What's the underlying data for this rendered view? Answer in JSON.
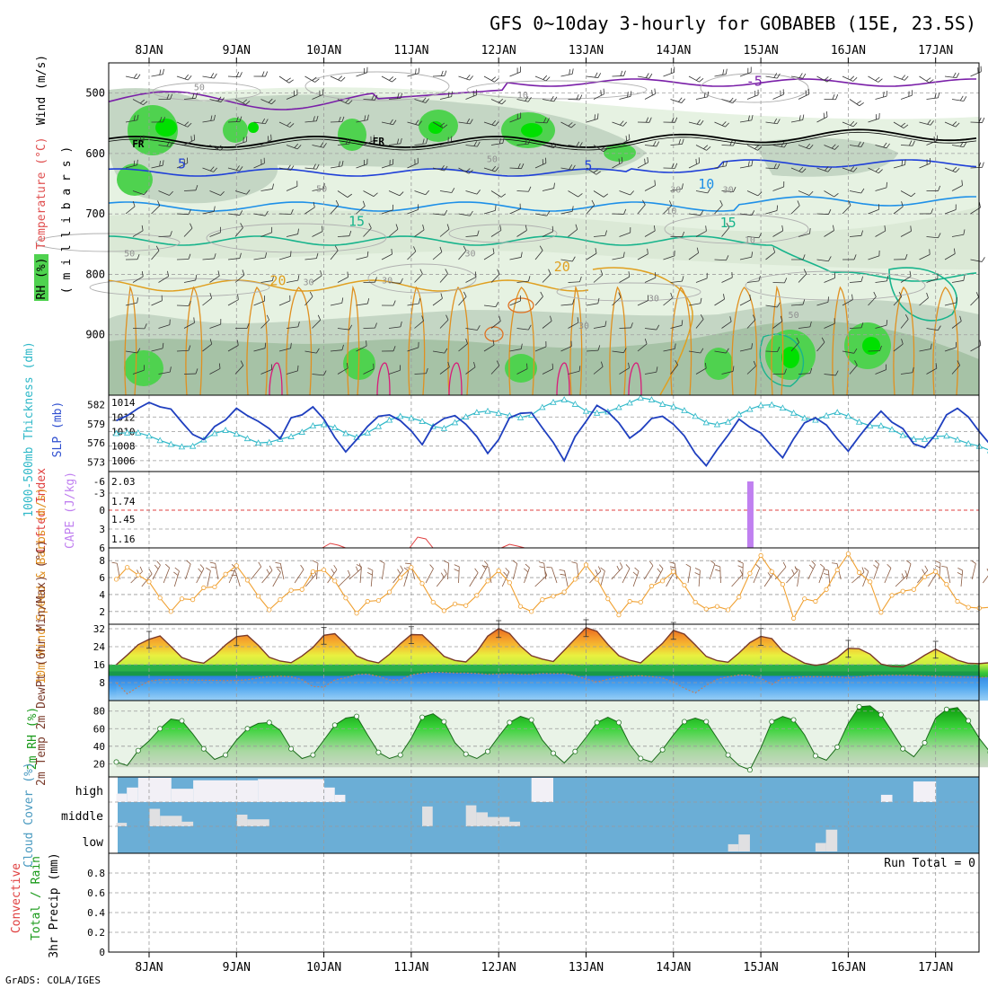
{
  "title": "GFS 0~10day 3-hourly for GOBABEB (15E, 23.5S)",
  "footer": "GrADS: COLA/IGES",
  "days": [
    "8JAN",
    "9JAN",
    "10JAN",
    "11JAN",
    "12JAN",
    "13JAN",
    "14JAN",
    "15JAN",
    "16JAN",
    "17JAN"
  ],
  "colors": {
    "rh_light": "#e6f2e2",
    "rh_mid": "#c4d6c4",
    "rh_dark": "#a6c2a6",
    "rh_green": "#4fd24f",
    "rh_bright": "#00e000",
    "slp": "#1f3fbf",
    "thickness": "#2fb8c8",
    "cape": "#c080f0",
    "wind": "#f0a030",
    "cloud_bg": "#6baed6",
    "cloud_fill": "#f2f0f6"
  },
  "chart_data": [
    {
      "panel": "upper-air",
      "type": "contour",
      "ylabel_parts": [
        "RH (%)",
        "Temperature (°C)",
        "Wind (m/s)"
      ],
      "ylabel_units": "( m i l l i b a r s )",
      "y_ticks": [
        500,
        600,
        700,
        800,
        900
      ],
      "ylim": [
        450,
        1000
      ],
      "contour_labels": [
        {
          "text": "-5",
          "day": 7.3,
          "p": 488
        },
        {
          "text": "FR",
          "day": 0.25,
          "p": 590
        },
        {
          "text": "FR",
          "day": 3.0,
          "p": 585
        },
        {
          "text": "5",
          "day": 0.75,
          "p": 625
        },
        {
          "text": "5",
          "day": 5.4,
          "p": 628
        },
        {
          "text": "10",
          "day": 6.75,
          "p": 658
        },
        {
          "text": "15",
          "day": 2.75,
          "p": 720
        },
        {
          "text": "15",
          "day": 7.0,
          "p": 722
        },
        {
          "text": "20",
          "day": 1.85,
          "p": 818
        },
        {
          "text": "20",
          "day": 5.1,
          "p": 795
        },
        {
          "text": "50",
          "day": 0.95,
          "p": 495
        },
        {
          "text": "10",
          "day": 4.65,
          "p": 508
        },
        {
          "text": "50",
          "day": 4.3,
          "p": 614
        },
        {
          "text": "50",
          "day": 2.35,
          "p": 663
        },
        {
          "text": "30",
          "day": 6.4,
          "p": 665
        },
        {
          "text": "30",
          "day": 7.0,
          "p": 665
        },
        {
          "text": "10",
          "day": 6.35,
          "p": 700
        },
        {
          "text": "10",
          "day": 7.25,
          "p": 748
        },
        {
          "text": "50",
          "day": 0.15,
          "p": 770
        },
        {
          "text": "30",
          "day": 4.05,
          "p": 770
        },
        {
          "text": "30",
          "day": 2.2,
          "p": 818
        },
        {
          "text": "30",
          "day": 3.1,
          "p": 815
        },
        {
          "text": "30",
          "day": 6.15,
          "p": 845
        },
        {
          "text": "30",
          "day": 5.35,
          "p": 890
        },
        {
          "text": "50",
          "day": 7.75,
          "p": 872
        }
      ]
    },
    {
      "panel": "slp-thickness",
      "type": "line",
      "ylabel_left": "1000-500mb Thickness (dm)",
      "ylabel_right": "SLP (mb)",
      "left_ticks": [
        573,
        576,
        579,
        582
      ],
      "right_ticks": [
        1006,
        1008,
        1010,
        1012,
        1014
      ],
      "ylim_left": [
        571.5,
        583.5
      ],
      "ylim_right": [
        1004.5,
        1015
      ],
      "series": [
        {
          "name": "SLP (mb)",
          "axis": "right",
          "values": [
            1011.5,
            1012.2,
            1013.2,
            1014.0,
            1013.4,
            1013.1,
            1011.3,
            1009.6,
            1008.9,
            1010.7,
            1011.6,
            1013.2,
            1012.2,
            1011.4,
            1010.4,
            1009.0,
            1011.9,
            1012.3,
            1013.4,
            1011.7,
            1009.2,
            1007.2,
            1008.9,
            1010.7,
            1012.1,
            1012.3,
            1011.5,
            1010.1,
            1008.2,
            1010.8,
            1011.8,
            1012.2,
            1011.0,
            1009.3,
            1007.0,
            1008.9,
            1011.9,
            1012.5,
            1012.6,
            1010.5,
            1008.5,
            1006.0,
            1009.3,
            1011.4,
            1013.6,
            1012.7,
            1011.2,
            1009.1,
            1010.2,
            1011.8,
            1012.1,
            1011.0,
            1009.4,
            1007.0,
            1005.3,
            1007.5,
            1009.5,
            1011.7,
            1010.6,
            1009.8,
            1008.0,
            1006.4,
            1009.0,
            1011.2,
            1011.9,
            1010.9,
            1009.0,
            1007.3,
            1009.3,
            1011.2,
            1012.8,
            1011.3,
            1010.4,
            1008.3,
            1007.8,
            1009.6,
            1012.3,
            1013.2,
            1012.0,
            1010.0,
            1008.2,
            1009.2,
            1011.3,
            1012.4,
            1013.6
          ]
        },
        {
          "name": "1000-500mb Thickness (dm)",
          "axis": "left",
          "values": [
            577.5,
            577.6,
            577.6,
            577.1,
            576.4,
            575.8,
            575.4,
            575.5,
            576.5,
            577.5,
            578.0,
            577.4,
            576.7,
            576.0,
            576.1,
            576.6,
            577.0,
            577.7,
            578.7,
            578.9,
            578.4,
            577.5,
            576.9,
            577.6,
            578.6,
            579.6,
            580.2,
            579.9,
            579.4,
            578.6,
            578.3,
            579.2,
            580.1,
            580.8,
            581.0,
            580.7,
            580.3,
            580.0,
            580.4,
            581.6,
            582.4,
            582.8,
            582.1,
            581.0,
            580.7,
            580.9,
            581.6,
            582.3,
            583.1,
            582.8,
            582.1,
            581.7,
            581.1,
            580.2,
            579.2,
            578.9,
            579.3,
            580.5,
            581.3,
            581.9,
            582.0,
            581.5,
            580.7,
            579.9,
            579.6,
            580.3,
            580.8,
            580.2,
            579.3,
            578.7,
            578.7,
            578.1,
            577.2,
            576.6,
            576.6,
            577.0,
            577.1,
            576.5,
            575.9,
            575.5,
            574.8,
            575.1,
            576.4,
            577.3,
            577.5
          ]
        }
      ]
    },
    {
      "panel": "cape-li",
      "type": "bar",
      "ylabel_left": "Lifted Index",
      "ylabel_right": "CAPE (J/kg)",
      "li_ticks": [
        "-6",
        "-3",
        "0",
        "3",
        "6"
      ],
      "cape_ticks": [
        "1.16",
        "1.45",
        "1.74",
        "2.03"
      ],
      "series": [
        {
          "name": "CAPE (J/kg)",
          "values": [
            {
              "day": 7.25,
              "value": 2.03
            }
          ]
        }
      ]
    },
    {
      "panel": "wind10m",
      "type": "line",
      "ylabel": "10m Wind Speed & Barbs (m/s)",
      "y_ticks": [
        2,
        4,
        6,
        8
      ],
      "ylim": [
        0.5,
        9.5
      ],
      "series": [
        {
          "name": "10m Wind Speed (m/s)",
          "values": [
            5.8,
            7.2,
            6.3,
            5.5,
            3.6,
            2.0,
            3.5,
            3.4,
            4.8,
            4.9,
            6.4,
            7.4,
            5.7,
            3.8,
            2.2,
            3.4,
            4.5,
            4.6,
            6.7,
            6.9,
            5.6,
            3.6,
            1.8,
            3.2,
            3.3,
            4.3,
            6.0,
            7.2,
            5.3,
            3.1,
            2.1,
            2.9,
            2.7,
            3.9,
            5.6,
            6.8,
            5.4,
            2.6,
            2.0,
            3.4,
            3.8,
            4.3,
            5.8,
            7.5,
            5.8,
            3.5,
            1.6,
            3.2,
            3.1,
            5.0,
            5.6,
            6.7,
            5.1,
            3.1,
            2.3,
            2.6,
            2.2,
            3.7,
            6.5,
            8.6,
            6.7,
            5.2,
            1.2,
            3.5,
            3.2,
            4.6,
            6.9,
            8.8,
            6.6,
            5.5,
            1.9,
            3.9,
            4.4,
            4.6,
            6.1,
            6.7,
            5.2,
            3.2,
            2.5,
            2.4,
            2.5,
            3.3,
            6.0,
            4.9,
            1.7
          ]
        }
      ]
    },
    {
      "panel": "temp2m",
      "type": "area",
      "ylabel": "2m Temp 2m DewPt (6hr Min/Max) (°C)",
      "y_ticks": [
        8,
        16,
        24,
        32
      ],
      "ylim": [
        0,
        34
      ],
      "series": [
        {
          "name": "2m Temp (°C)",
          "values": [
            16.0,
            20.3,
            24.9,
            27.3,
            28.8,
            24.1,
            19.2,
            17.5,
            16.7,
            20.2,
            24.8,
            28.5,
            29.1,
            24.6,
            19.3,
            17.6,
            16.9,
            19.9,
            23.7,
            29.1,
            29.8,
            25.1,
            19.9,
            17.9,
            16.8,
            20.6,
            25.3,
            29.4,
            29.3,
            24.6,
            19.7,
            17.9,
            17.2,
            21.8,
            28.7,
            32.1,
            29.9,
            24.3,
            20.0,
            18.5,
            17.4,
            22.4,
            27.5,
            32.5,
            30.9,
            25.0,
            20.0,
            18.0,
            16.8,
            21.2,
            25.5,
            31.3,
            29.6,
            24.8,
            19.7,
            17.8,
            17.1,
            21.2,
            25.8,
            28.6,
            27.6,
            22.1,
            19.3,
            16.7,
            15.7,
            16.5,
            19.2,
            23.3,
            23.1,
            20.7,
            16.3,
            15.2,
            15.0,
            17.1,
            20.2,
            22.9,
            20.5,
            18.0,
            16.6,
            16.5,
            16.9,
            19.6,
            19.4,
            17.5,
            15.7
          ]
        },
        {
          "name": "2m DewPt (°C)",
          "values": [
            8.0,
            3.0,
            6.1,
            8.7,
            9.3,
            9.4,
            9.3,
            9.2,
            9.1,
            9.0,
            8.9,
            9.0,
            9.3,
            10.1,
            10.7,
            10.9,
            10.6,
            9.3,
            6.3,
            6.0,
            9.2,
            10.2,
            11.6,
            11.8,
            10.8,
            9.2,
            9.2,
            11.5,
            12.2,
            12.6,
            12.5,
            12.3,
            12.3,
            12.1,
            11.7,
            11.9,
            12.0,
            11.7,
            11.7,
            12.1,
            12.0,
            12.0,
            11.2,
            9.6,
            8.3,
            9.5,
            10.4,
            10.9,
            11.1,
            10.7,
            10.1,
            8.2,
            5.5,
            3.4,
            6.8,
            9.5,
            10.6,
            11.4,
            11.3,
            9.9,
            7.2,
            10.0,
            10.1,
            10.6,
            10.6,
            10.6,
            10.6,
            10.0,
            10.6,
            11.1,
            11.2,
            11.3,
            11.3,
            11.2,
            11.0,
            10.8,
            10.7,
            10.5,
            10.4,
            10.3,
            10.5,
            10.5,
            10.6,
            10.4,
            10.3
          ]
        }
      ]
    },
    {
      "panel": "rh2m",
      "type": "area",
      "ylabel": "2m RH (%)",
      "y_ticks": [
        20,
        40,
        60,
        80
      ],
      "ylim": [
        5,
        92
      ],
      "series": [
        {
          "name": "2m RH (%)",
          "values": [
            22,
            18,
            35,
            46,
            60,
            71,
            69,
            54,
            37,
            25,
            30,
            47,
            60,
            66,
            67,
            58,
            37,
            26,
            30,
            47,
            64,
            72,
            74,
            53,
            33,
            26,
            30,
            49,
            73,
            77,
            68,
            44,
            31,
            26,
            34,
            51,
            67,
            74,
            70,
            47,
            32,
            21,
            34,
            50,
            67,
            73,
            67,
            42,
            26,
            22,
            36,
            53,
            68,
            72,
            68,
            49,
            30,
            18,
            13,
            38,
            68,
            74,
            70,
            53,
            29,
            24,
            39,
            66,
            85,
            86,
            76,
            57,
            37,
            28,
            44,
            72,
            82,
            84,
            69,
            49,
            33,
            40,
            55,
            69,
            64
          ]
        }
      ]
    },
    {
      "panel": "cloud-cover",
      "type": "heatmap",
      "ylabel": "Cloud Cover (%)",
      "rows": [
        "high",
        "middle",
        "low"
      ],
      "high_blocks": [
        {
          "from": 0.0,
          "to": 0.12,
          "level": 0.35
        },
        {
          "from": 0.12,
          "to": 0.25,
          "level": 0.6
        },
        {
          "from": 0.25,
          "to": 0.63,
          "level": 1.0
        },
        {
          "from": 0.63,
          "to": 0.88,
          "level": 0.55
        },
        {
          "from": 0.88,
          "to": 1.62,
          "level": 0.9
        },
        {
          "from": 1.62,
          "to": 2.38,
          "level": 0.95
        },
        {
          "from": 2.38,
          "to": 2.5,
          "level": 0.6
        },
        {
          "from": 2.5,
          "to": 2.62,
          "level": 0.3
        },
        {
          "from": 4.75,
          "to": 5.0,
          "level": 1.0
        },
        {
          "from": 8.75,
          "to": 8.88,
          "level": 0.3
        },
        {
          "from": 9.12,
          "to": 9.38,
          "level": 0.85
        }
      ],
      "middle_blocks": [
        {
          "from": 0.0,
          "to": 0.12,
          "level": 0.15
        },
        {
          "from": 0.38,
          "to": 0.5,
          "level": 0.75
        },
        {
          "from": 0.5,
          "to": 0.75,
          "level": 0.45
        },
        {
          "from": 0.75,
          "to": 0.88,
          "level": 0.2
        },
        {
          "from": 1.38,
          "to": 1.5,
          "level": 0.5
        },
        {
          "from": 1.5,
          "to": 1.75,
          "level": 0.3
        },
        {
          "from": 3.5,
          "to": 3.62,
          "level": 0.85
        },
        {
          "from": 4.0,
          "to": 4.12,
          "level": 0.9
        },
        {
          "from": 4.12,
          "to": 4.25,
          "level": 0.6
        },
        {
          "from": 4.25,
          "to": 4.5,
          "level": 0.4
        },
        {
          "from": 4.5,
          "to": 4.62,
          "level": 0.2
        }
      ],
      "low_blocks": [
        {
          "from": 7.0,
          "to": 7.12,
          "level": 0.3
        },
        {
          "from": 7.12,
          "to": 7.25,
          "level": 0.7
        },
        {
          "from": 8.0,
          "to": 8.12,
          "level": 0.35
        },
        {
          "from": 8.12,
          "to": 8.25,
          "level": 0.9
        }
      ]
    },
    {
      "panel": "precip",
      "type": "bar",
      "ylabel_left_1": "Total / Rain",
      "ylabel_left_2": "Convective",
      "ylabel": "3hr Precip (mm)",
      "y_ticks": [
        "0",
        "0.2",
        "0.4",
        "0.6",
        "0.8"
      ],
      "ylim": [
        0,
        1.0
      ],
      "run_total": "Run Total = 0",
      "values": []
    }
  ]
}
